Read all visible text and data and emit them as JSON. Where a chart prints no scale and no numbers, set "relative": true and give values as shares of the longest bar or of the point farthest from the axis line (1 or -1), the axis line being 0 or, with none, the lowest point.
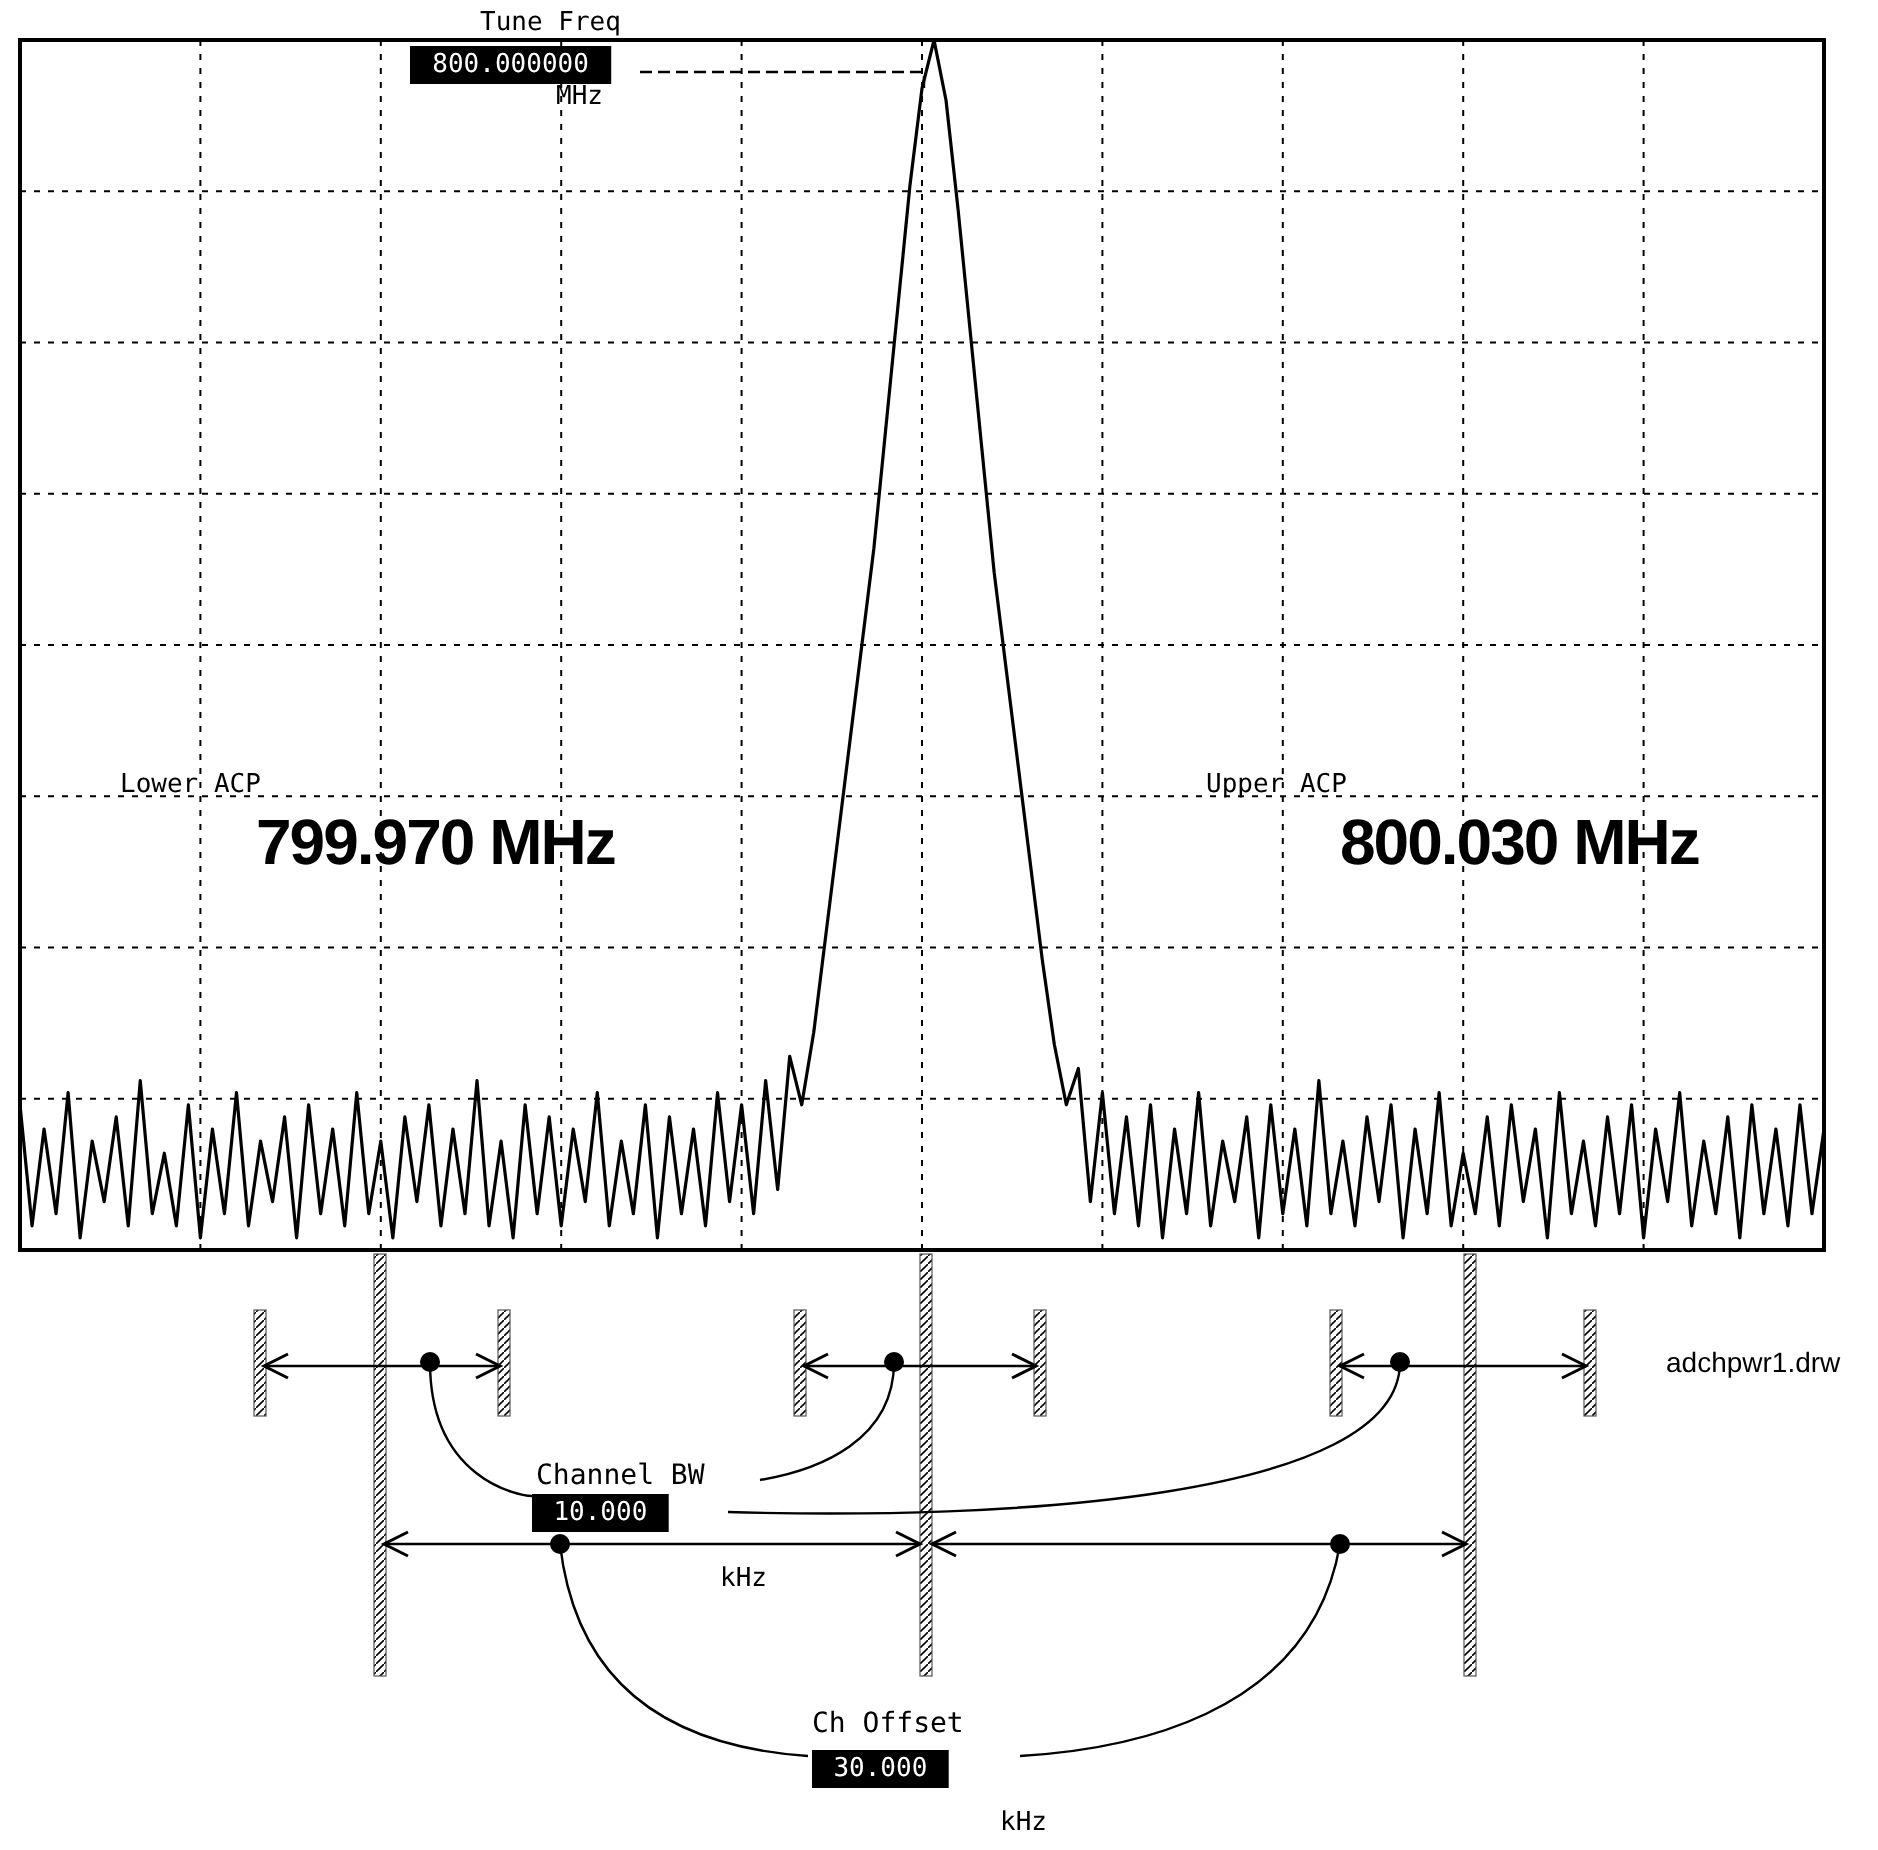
{
  "chart_data": {
    "type": "line",
    "relative": true,
    "grid": true,
    "categories": [
      null,
      null,
      null,
      null,
      null,
      null,
      null,
      null,
      null,
      null,
      null,
      null,
      null,
      null,
      null,
      null,
      null,
      null,
      null,
      null,
      null,
      null,
      null,
      null,
      null,
      null,
      null,
      null,
      null,
      null,
      null,
      null,
      null,
      null,
      null,
      null,
      null,
      null,
      null,
      null,
      null,
      null,
      null,
      null,
      null,
      null,
      null,
      null,
      null,
      null,
      null,
      null,
      null,
      null,
      null,
      null,
      null,
      null,
      null,
      null,
      null,
      null,
      null,
      null,
      null,
      null,
      null,
      null,
      null,
      null,
      null,
      null,
      null,
      null,
      null,
      null,
      null,
      null,
      null,
      null,
      null,
      null,
      null,
      null,
      null,
      null,
      null,
      null,
      null,
      null,
      null,
      null,
      null,
      null,
      null,
      null,
      null,
      null,
      null,
      null,
      null,
      null,
      null,
      null,
      null,
      null,
      null,
      null,
      null,
      null,
      null,
      null,
      null,
      null,
      null,
      null,
      null,
      null,
      null,
      null,
      null,
      null,
      null,
      null,
      null,
      null,
      null,
      null,
      null,
      null,
      null,
      null,
      null,
      null,
      null,
      null,
      null,
      null,
      null,
      null,
      null,
      null,
      null,
      null,
      null,
      null,
      null,
      null,
      null,
      null,
      null
    ],
    "series": [
      {
        "color": "#000000",
        "values": [
          0.12,
          0.02,
          0.1,
          0.03,
          0.13,
          0.01,
          0.09,
          0.04,
          0.11,
          0.02,
          0.14,
          0.03,
          0.08,
          0.02,
          0.12,
          0.01,
          0.1,
          0.03,
          0.13,
          0.02,
          0.09,
          0.04,
          0.11,
          0.01,
          0.12,
          0.03,
          0.1,
          0.02,
          0.13,
          0.03,
          0.09,
          0.01,
          0.11,
          0.04,
          0.12,
          0.02,
          0.1,
          0.03,
          0.14,
          0.02,
          0.09,
          0.01,
          0.12,
          0.03,
          0.11,
          0.02,
          0.1,
          0.04,
          0.13,
          0.02,
          0.09,
          0.03,
          0.12,
          0.01,
          0.11,
          0.03,
          0.1,
          0.02,
          0.13,
          0.04,
          0.12,
          0.03,
          0.14,
          0.05,
          0.16,
          0.12,
          0.18,
          0.26,
          0.34,
          0.42,
          0.5,
          0.58,
          0.68,
          0.78,
          0.88,
          0.96,
          1,
          0.95,
          0.86,
          0.76,
          0.66,
          0.56,
          0.48,
          0.4,
          0.32,
          0.24,
          0.17,
          0.12,
          0.15,
          0.04,
          0.13,
          0.03,
          0.11,
          0.02,
          0.12,
          0.01,
          0.1,
          0.03,
          0.13,
          0.02,
          0.09,
          0.04,
          0.11,
          0.01,
          0.12,
          0.03,
          0.1,
          0.02,
          0.14,
          0.03,
          0.09,
          0.02,
          0.11,
          0.04,
          0.12,
          0.01,
          0.1,
          0.03,
          0.13,
          0.02,
          0.08,
          0.03,
          0.11,
          0.02,
          0.12,
          0.04,
          0.1,
          0.01,
          0.13,
          0.03,
          0.09,
          0.02,
          0.11,
          0.03,
          0.12,
          0.01,
          0.1,
          0.04,
          0.13,
          0.02,
          0.09,
          0.03,
          0.11,
          0.01,
          0.12,
          0.03,
          0.1,
          0.02,
          0.12,
          0.03,
          0.1
        ]
      }
    ],
    "annotations": [
      "Tune Freq",
      "800.000000",
      "MHz",
      "Lower ACP",
      "799.970 MHz",
      "Upper ACP",
      "800.030 MHz",
      "Channel BW",
      "10.000",
      "kHz",
      "Ch Offset",
      "30.000",
      "kHz",
      "adchpwr1.drw"
    ]
  }
}
